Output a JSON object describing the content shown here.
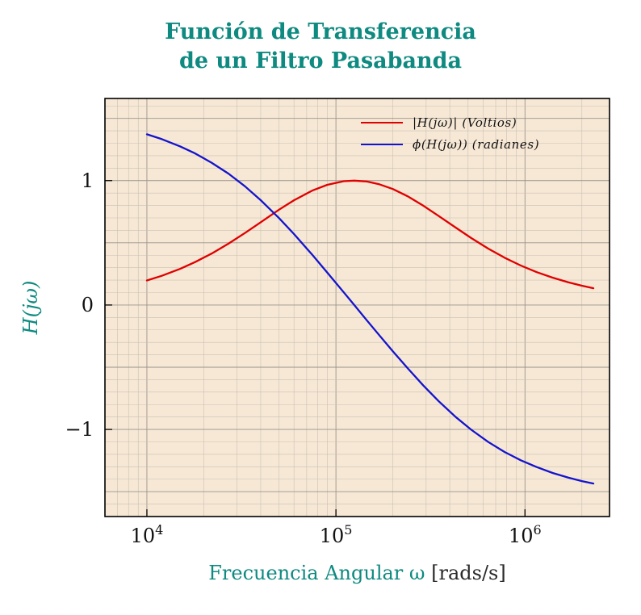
{
  "title": {
    "line1": "Función de Transferencia",
    "line2": "de un Filtro Pasabanda"
  },
  "axes": {
    "ylabel": "H(jω)",
    "xlabel_main": "Frecuencia Angular ω",
    "xlabel_unit": "[rads/s]"
  },
  "legend": {
    "entries": [
      {
        "label": "|H(jω)| (Voltios)",
        "color": "#e00000"
      },
      {
        "label": "ϕ(H(jω)) (radianes)",
        "color": "#1414cc"
      }
    ]
  },
  "colors": {
    "accent": "#0e8a80",
    "plot_bg": "#f7e8d6",
    "grid_major": "#9a938a",
    "grid_minor": "#c9c0b1",
    "frame": "#000000",
    "magnitude": "#e00000",
    "phase": "#1414cc"
  },
  "chart_data": {
    "type": "line",
    "title": "Función de Transferencia de un Filtro Pasabanda",
    "xlabel": "Frecuencia Angular ω [rads/s]",
    "ylabel": "H(jω)",
    "x_scale": "log",
    "xlim": [
      6000,
      2800000
    ],
    "ylim": [
      -1.7,
      1.66
    ],
    "x_ticks": [
      10000,
      100000,
      1000000
    ],
    "x_ticklabels": [
      "10^4",
      "10^5",
      "10^6"
    ],
    "y_ticks": [
      -1,
      0,
      1
    ],
    "y_ticklabels": [
      "−1",
      "0",
      "1"
    ],
    "grid": "major+minor",
    "legend_position": "upper right",
    "x": [
      10000,
      12000,
      15000,
      18000,
      22000,
      27000,
      33000,
      40000,
      50000,
      60000,
      75000,
      90000,
      110000,
      125000,
      145000,
      170000,
      200000,
      240000,
      290000,
      350000,
      430000,
      520000,
      640000,
      780000,
      950000,
      1150000,
      1400000,
      1700000,
      2000000,
      2300000
    ],
    "series": [
      {
        "name": "|H(jω)| (Voltios)",
        "color": "#e00000",
        "values": [
          0.197,
          0.235,
          0.291,
          0.345,
          0.413,
          0.493,
          0.579,
          0.665,
          0.766,
          0.842,
          0.92,
          0.966,
          0.995,
          1.0,
          0.993,
          0.97,
          0.932,
          0.873,
          0.798,
          0.715,
          0.622,
          0.538,
          0.453,
          0.38,
          0.317,
          0.265,
          0.22,
          0.182,
          0.155,
          0.135
        ]
      },
      {
        "name": "ϕ(H(jω)) (radianes)",
        "color": "#1414cc",
        "values": [
          1.372,
          1.333,
          1.275,
          1.218,
          1.144,
          1.056,
          0.954,
          0.843,
          0.699,
          0.57,
          0.403,
          0.261,
          0.102,
          0.0,
          -0.119,
          -0.245,
          -0.372,
          -0.51,
          -0.647,
          -0.774,
          -0.9,
          -1.003,
          -1.101,
          -1.181,
          -1.248,
          -1.302,
          -1.35,
          -1.388,
          -1.415,
          -1.435
        ]
      }
    ]
  }
}
